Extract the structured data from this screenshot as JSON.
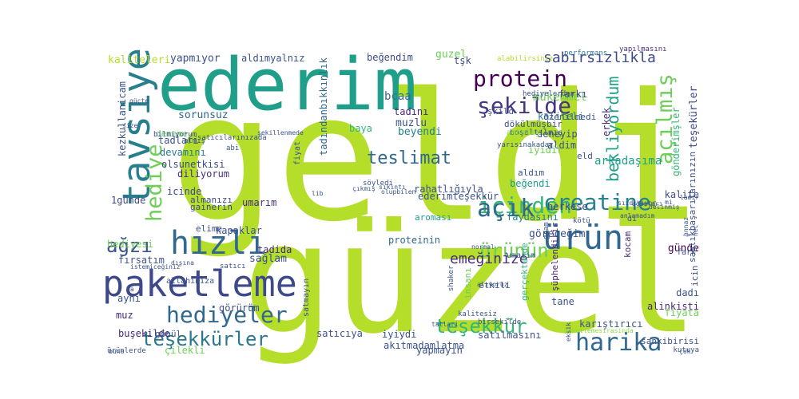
{
  "words": [
    {
      "text": "geldi",
      "color": "#b5de2b"
    },
    {
      "text": "güzel",
      "color": "#b5de2b"
    },
    {
      "text": "ederim",
      "color": "#1f9e89"
    },
    {
      "text": "paketleme",
      "color": "#3e4989"
    },
    {
      "text": "tavsiye",
      "color": "#277f8e"
    },
    {
      "text": "hızlı",
      "color": "#31688e"
    },
    {
      "text": "ürün",
      "color": "#31688e"
    },
    {
      "text": "protein",
      "color": "#440154"
    },
    {
      "text": "içinden",
      "color": "#35b779"
    },
    {
      "text": "harika",
      "color": "#31688e"
    },
    {
      "text": "açık",
      "color": "#31688e"
    },
    {
      "text": "creatine",
      "color": "#26828e"
    },
    {
      "text": "hediyeler",
      "color": "#31688e"
    },
    {
      "text": "teşekkürler",
      "color": "#2a788e"
    },
    {
      "text": "hediye",
      "color": "#6ece58"
    },
    {
      "text": "şekilde",
      "color": "#453781"
    },
    {
      "text": "açılmış",
      "color": "#6ece58"
    },
    {
      "text": "ürünün",
      "color": "#6ece58"
    },
    {
      "text": "teşekkür",
      "color": "#35b779"
    },
    {
      "text": "teslimat",
      "color": "#31688e"
    },
    {
      "text": "sabırsızlıkla",
      "color": "#3e4989"
    },
    {
      "text": "ağzı",
      "color": "#3b528b"
    },
    {
      "text": "bekliyordum",
      "color": "#1f9e89"
    },
    {
      "text": "emeğinize",
      "color": "#472d7b"
    },
    {
      "text": "kaliteleri",
      "color": "#b5de2b"
    },
    {
      "text": "yapmıyor",
      "color": "#3b528b"
    },
    {
      "text": "aldımyalnız",
      "color": "#3b528b"
    },
    {
      "text": "beğendim",
      "color": "#3e4989"
    },
    {
      "text": "guzel",
      "color": "#6ece58"
    },
    {
      "text": "tşk",
      "color": "#3e4989"
    },
    {
      "text": "alabilirsiniz",
      "color": "#b5de2b"
    },
    {
      "text": "performans",
      "color": "#2a788e"
    },
    {
      "text": "yapılmasını",
      "color": "#472d7b"
    },
    {
      "text": "kezkullanicam",
      "color": "#3b528b"
    },
    {
      "text": "tadındanbıkkınlık",
      "color": "#31688e"
    },
    {
      "text": "bcaa",
      "color": "#31688e"
    },
    {
      "text": "mükemmel",
      "color": "#6ece58"
    },
    {
      "text": "kaliteli",
      "color": "#26828e"
    },
    {
      "text": "farkı",
      "color": "#3e4989"
    },
    {
      "text": "sorunsuz",
      "color": "#31688e"
    },
    {
      "text": "muzlu",
      "color": "#3b528b"
    },
    {
      "text": "baya",
      "color": "#35b779"
    },
    {
      "text": "tadını",
      "color": "#482878"
    },
    {
      "text": "beyendi",
      "color": "#26828e"
    },
    {
      "text": "deneyip",
      "color": "#3b528b"
    },
    {
      "text": "iyidir",
      "color": "#6ece58"
    },
    {
      "text": "aldim",
      "color": "#3b528b"
    },
    {
      "text": "erkek",
      "color": "#472d7b"
    },
    {
      "text": "arkadaşıma",
      "color": "#1f9e89"
    },
    {
      "text": "teşekürler",
      "color": "#3e4989"
    },
    {
      "text": "gönderimşler",
      "color": "#35b779"
    },
    {
      "text": "deneme",
      "color": "#6ece58"
    },
    {
      "text": "tadlari",
      "color": "#3b528b"
    },
    {
      "text": "devamını",
      "color": "#2a788e"
    },
    {
      "text": "olsunetkisi",
      "color": "#3e4989"
    },
    {
      "text": "diliyorum",
      "color": "#472d7b"
    },
    {
      "text": "icinde",
      "color": "#3e4989"
    },
    {
      "text": "1günde",
      "color": "#3e4989"
    },
    {
      "text": "almanızı",
      "color": "#3e4989"
    },
    {
      "text": "gainerin",
      "color": "#3e4989"
    },
    {
      "text": "elime",
      "color": "#3b528b"
    },
    {
      "text": "umarım",
      "color": "#472d7b"
    },
    {
      "text": "ederimteşekkür",
      "color": "#3b528b"
    },
    {
      "text": "herkese",
      "color": "#3e4989"
    },
    {
      "text": "faydasını",
      "color": "#26828e"
    },
    {
      "text": "aroması",
      "color": "#1f9e89"
    },
    {
      "text": "kalite",
      "color": "#3e4989"
    },
    {
      "text": "günde",
      "color": "#440154"
    },
    {
      "text": "tadida",
      "color": "#482878"
    },
    {
      "text": "sağlam",
      "color": "#3b528b"
    },
    {
      "text": "fırsatım",
      "color": "#3b528b"
    },
    {
      "text": "hediyesi",
      "color": "#6ece58"
    },
    {
      "text": "proteinin",
      "color": "#31688e"
    },
    {
      "text": "göreceğim",
      "color": "#3b528b"
    },
    {
      "text": "kocam",
      "color": "#472d7b"
    },
    {
      "text": "gerçektende",
      "color": "#35b779"
    },
    {
      "text": "şüphelendirir",
      "color": "#482878"
    },
    {
      "text": "tane",
      "color": "#3b528b"
    },
    {
      "text": "dadı",
      "color": "#3b528b"
    },
    {
      "text": "alinkisti",
      "color": "#482878"
    },
    {
      "text": "fiyata",
      "color": "#6ece58"
    },
    {
      "text": "icin",
      "color": "#3e4989"
    },
    {
      "text": "saglıkbaşarılarınızın",
      "color": "#3b528b"
    },
    {
      "text": "aynı",
      "color": "#3b528b"
    },
    {
      "text": "görürüm",
      "color": "#3b528b"
    },
    {
      "text": "muz",
      "color": "#482878"
    },
    {
      "text": "buşekilde",
      "color": "#482878"
    },
    {
      "text": "gönül",
      "color": "#3b528b"
    },
    {
      "text": "satıcıya",
      "color": "#3b528b"
    },
    {
      "text": "iyiydi",
      "color": "#3b528b"
    },
    {
      "text": "akıtmadamlatma",
      "color": "#3b528b"
    },
    {
      "text": "karıştırıcı",
      "color": "#3b528b"
    },
    {
      "text": "satılmasını",
      "color": "#3b528b"
    },
    {
      "text": "yapmayın",
      "color": "#3b528b"
    },
    {
      "text": "çilekli",
      "color": "#6ece58"
    },
    {
      "text": "insanı",
      "color": "#6ece58"
    },
    {
      "text": "aldım",
      "color": "#3b528b"
    },
    {
      "text": "beğendi",
      "color": "#1f9e89"
    },
    {
      "text": "rahatlığıyla",
      "color": "#3b528b"
    },
    {
      "text": "allahınıza",
      "color": "#3b528b"
    },
    {
      "text": "kapaklar",
      "color": "#3b528b"
    },
    {
      "text": "etkili",
      "color": "#3b528b"
    },
    {
      "text": "umarim",
      "color": "#3b528b"
    },
    {
      "text": "satmayın",
      "color": "#3b528b"
    },
    {
      "text": "kötü",
      "color": "#3b528b"
    },
    {
      "text": "dökülmüşbir",
      "color": "#3b528b"
    },
    {
      "text": "boşaltılmış",
      "color": "#3b528b"
    },
    {
      "text": "ambalaj",
      "color": "#8fd744"
    },
    {
      "text": "yarısınakadar",
      "color": "#3b528b"
    },
    {
      "text": "özenilmedi",
      "color": "#3b528b"
    },
    {
      "text": "hediyelerden",
      "color": "#3b528b"
    },
    {
      "text": "fiyat",
      "color": "#3b528b"
    },
    {
      "text": "şekillenmede",
      "color": "#3b528b"
    },
    {
      "text": "bilmiyorum",
      "color": "#3b528b"
    },
    {
      "text": "almış",
      "color": "#3b528b"
    },
    {
      "text": "satıcılarınızada",
      "color": "#3b528b"
    },
    {
      "text": "abi",
      "color": "#3b528b"
    },
    {
      "text": "güçte",
      "color": "#3b528b"
    },
    {
      "text": "size",
      "color": "#3b528b"
    },
    {
      "text": "normal",
      "color": "#3b528b"
    },
    {
      "text": "alıyoruz",
      "color": "#3b528b"
    },
    {
      "text": "dışına",
      "color": "#3b528b"
    },
    {
      "text": "istemiceğiniz",
      "color": "#3b528b"
    },
    {
      "text": "satıcı",
      "color": "#3b528b"
    },
    {
      "text": "di",
      "color": "#3b528b"
    },
    {
      "text": "fark",
      "color": "#3b528b"
    },
    {
      "text": "shaker",
      "color": "#3b528b"
    },
    {
      "text": "kalitesiz",
      "color": "#3b528b"
    },
    {
      "text": "birsekilde",
      "color": "#3b528b"
    },
    {
      "text": "sankibirisi",
      "color": "#3b528b"
    },
    {
      "text": "kutuya",
      "color": "#3b528b"
    },
    {
      "text": "paketlemesirasinda",
      "color": "#8fd744"
    },
    {
      "text": "tatlari",
      "color": "#3b528b"
    },
    {
      "text": "çok",
      "color": "#3b528b"
    },
    {
      "text": "bune",
      "color": "#3b528b"
    },
    {
      "text": "ürünlerde",
      "color": "#3b528b"
    },
    {
      "text": "eksik",
      "color": "#3b528b"
    },
    {
      "text": "gram",
      "color": "#3b528b"
    },
    {
      "text": "söyledi",
      "color": "#3b528b"
    },
    {
      "text": "çıkmış",
      "color": "#3b528b"
    },
    {
      "text": "sıkıntı",
      "color": "#3b528b"
    },
    {
      "text": "olupbilen",
      "color": "#3b528b"
    },
    {
      "text": "ağızları",
      "color": "#3b528b"
    },
    {
      "text": "sızdırıyor",
      "color": "#3b528b"
    },
    {
      "text": "anlamadım",
      "color": "#3b528b"
    },
    {
      "text": "delinmiş",
      "color": "#3b528b"
    },
    {
      "text": "mi",
      "color": "#3b528b"
    },
    {
      "text": "hnnaz",
      "color": "#3b528b"
    },
    {
      "text": "nec",
      "color": "#3b528b"
    },
    {
      "text": "v",
      "color": "#3b528b"
    },
    {
      "text": "ladır",
      "color": "#3b528b"
    },
    {
      "text": "la",
      "color": "#3b528b"
    },
    {
      "text": "lib",
      "color": "#3b528b"
    },
    {
      "text": "şkild",
      "color": "#3b528b"
    },
    {
      "text": "eld",
      "color": "#3b528b"
    }
  ]
}
